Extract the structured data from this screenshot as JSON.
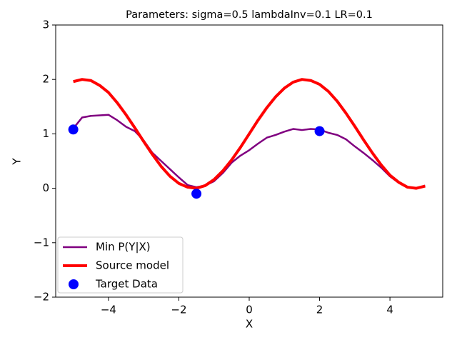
{
  "chart_data": {
    "type": "line",
    "title": "Parameters: sigma=0.5 lambdaInv=0.1 LR=0.1",
    "xlabel": "X",
    "ylabel": "Y",
    "xlim": [
      -5.5,
      5.5
    ],
    "ylim": [
      -2,
      3
    ],
    "xticks": [
      {
        "value": -4,
        "label": "−4"
      },
      {
        "value": -2,
        "label": "−2"
      },
      0,
      2,
      4
    ],
    "yticks": [
      {
        "value": -2,
        "label": "−2"
      },
      {
        "value": -1,
        "label": "−1"
      },
      0,
      1,
      2,
      3
    ],
    "legend": "lower left",
    "x": [
      -5,
      -4.75,
      -4.5,
      -4.25,
      -4,
      -3.75,
      -3.5,
      -3.25,
      -3,
      -2.75,
      -2.5,
      -2.25,
      -2,
      -1.75,
      -1.5,
      -1.25,
      -1,
      -0.75,
      -0.5,
      -0.25,
      0,
      0.25,
      0.5,
      0.75,
      1,
      1.25,
      1.5,
      1.75,
      2,
      2.25,
      2.5,
      2.75,
      3,
      3.25,
      3.5,
      3.75,
      4,
      4.25,
      4.5,
      4.75,
      5
    ],
    "series": [
      {
        "name": "Min P(Y|X)",
        "color": "#800080",
        "values": [
          1.1,
          1.3,
          1.33,
          1.34,
          1.35,
          1.25,
          1.13,
          1.05,
          0.88,
          0.65,
          0.5,
          0.35,
          0.2,
          0.06,
          0.02,
          0.05,
          0.13,
          0.28,
          0.47,
          0.6,
          0.7,
          0.82,
          0.93,
          0.98,
          1.04,
          1.09,
          1.07,
          1.09,
          1.08,
          1.02,
          0.98,
          0.9,
          0.77,
          0.65,
          0.52,
          0.38,
          0.22,
          0.1,
          0.02,
          0.0,
          0.05
        ]
      },
      {
        "name": "Source model",
        "color": "#ff0000",
        "values": [
          1.96,
          2.0,
          1.98,
          1.89,
          1.76,
          1.57,
          1.35,
          1.11,
          0.86,
          0.62,
          0.4,
          0.22,
          0.09,
          0.02,
          0.0,
          0.05,
          0.16,
          0.32,
          0.52,
          0.75,
          1.0,
          1.25,
          1.48,
          1.68,
          1.84,
          1.95,
          2.0,
          1.98,
          1.91,
          1.78,
          1.6,
          1.38,
          1.14,
          0.89,
          0.65,
          0.43,
          0.24,
          0.11,
          0.02,
          0.0,
          0.04
        ]
      },
      {
        "name": "Target Data",
        "color": "#0000ff",
        "type": "scatter",
        "x": [
          -5,
          -1.5,
          2
        ],
        "values": [
          1.08,
          -0.1,
          1.05
        ]
      }
    ]
  }
}
